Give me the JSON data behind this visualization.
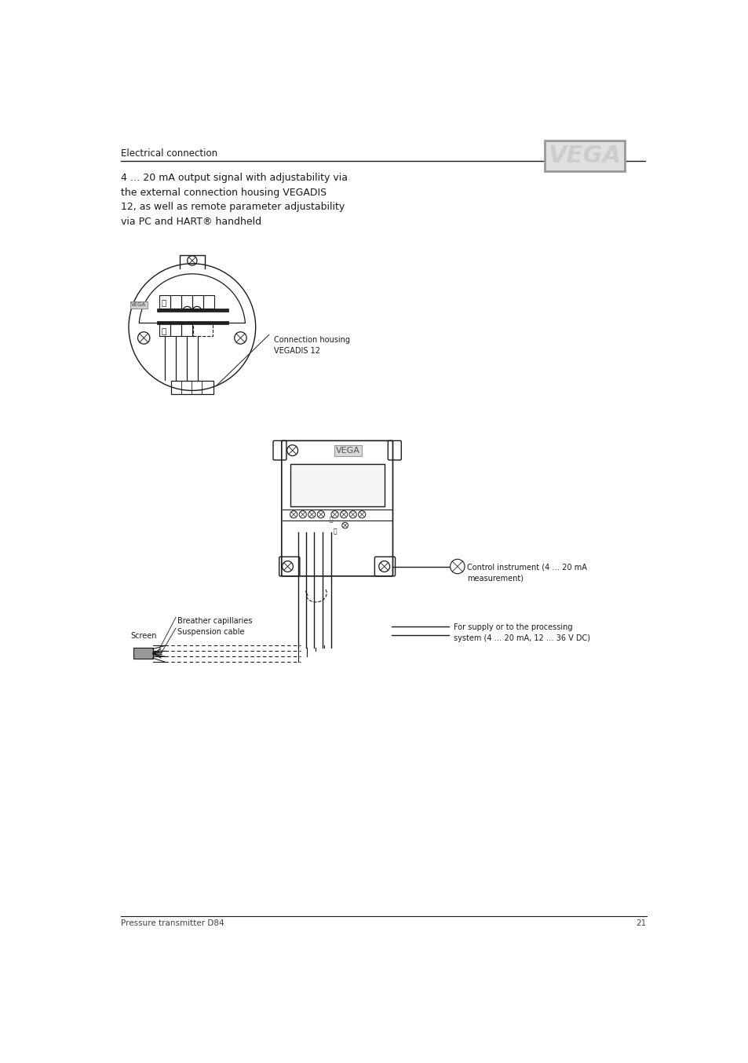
{
  "header_text": "Electrical connection",
  "footer_text": "Pressure transmitter D84",
  "page_number": "21",
  "intro_text": "4 … 20 mA output signal with adjustability via\nthe external connection housing VEGADIS\n12, as well as remote parameter adjustability\nvia PC and HART® handheld",
  "label_connection_housing": "Connection housing\nVEGADIS 12",
  "label_breather": "Breather capillaries",
  "label_suspension": "Suspension cable",
  "label_screen": "Screen",
  "label_supply": "For supply or to the processing\nsystem (4 … 20 mA, 12 … 36 V DC)",
  "label_control": "Control instrument (4 … 20 mA\nmeasurement)",
  "bg_color": "#ffffff",
  "line_color": "#1a1a1a",
  "text_color": "#1a1a1a",
  "gray_color": "#888888"
}
